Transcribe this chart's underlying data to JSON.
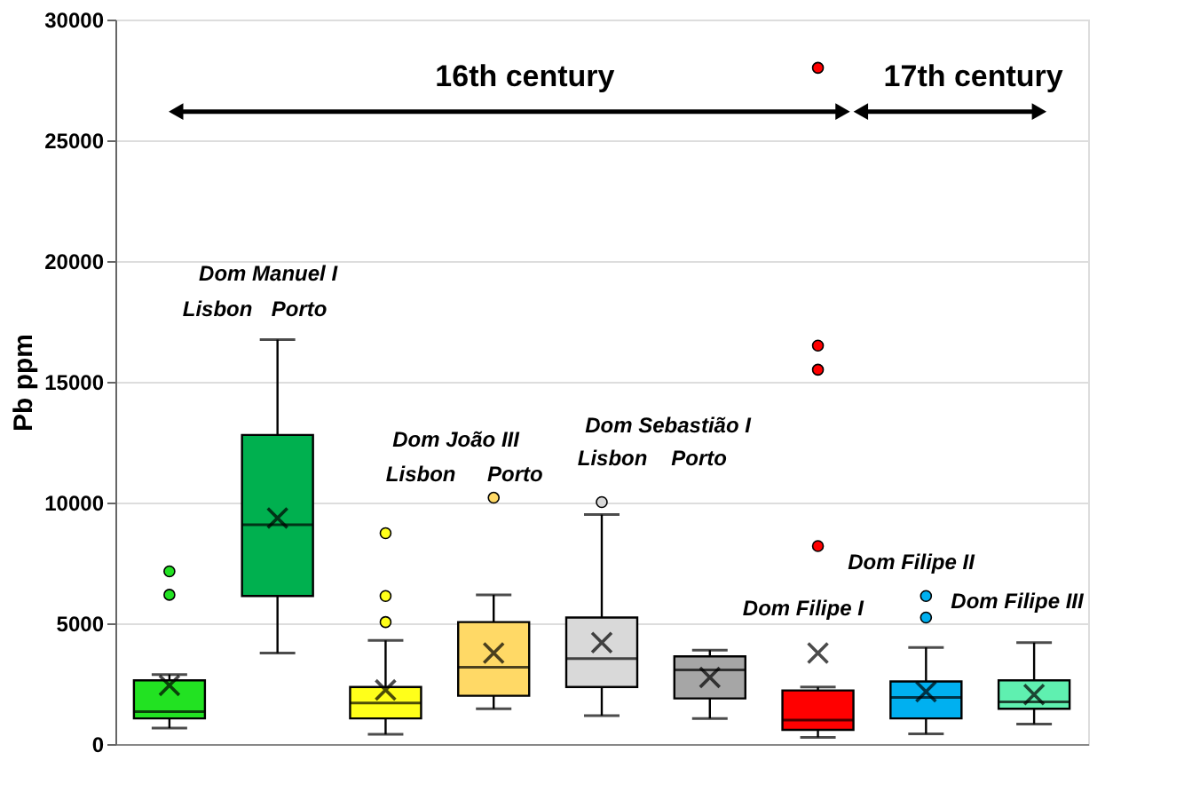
{
  "chart_data": {
    "type": "box",
    "ylabel": "Pb ppm",
    "categories": [
      null,
      null,
      null,
      null,
      null,
      null,
      null,
      null,
      null
    ],
    "colors": [
      "#22e222",
      "#00b04f",
      "#ffff1a",
      "#ffd966",
      "#d9d9d9",
      "#a6a6a6",
      "#ff0000",
      "#00b0f0",
      "#5ff0b0"
    ],
    "boxes": [
      {
        "low": 660,
        "q1": 1060,
        "median": 1340,
        "q3": 2640,
        "high": 2880,
        "mean": 2430,
        "outliers": [
          7150,
          6180
        ]
      },
      {
        "low": 3770,
        "q1": 6130,
        "median": 9080,
        "q3": 12800,
        "high": 16750,
        "mean": 9360
      },
      {
        "low": 400,
        "q1": 1060,
        "median": 1700,
        "q3": 2360,
        "high": 4290,
        "mean": 2240,
        "outliers": [
          8730,
          6130,
          5050
        ]
      },
      {
        "low": 1460,
        "q1": 2000,
        "median": 3180,
        "q3": 5050,
        "high": 6180,
        "mean": 3770,
        "outliers": [
          10200
        ]
      },
      {
        "low": 1180,
        "q1": 2360,
        "median": 3540,
        "q3": 5240,
        "high": 9500,
        "mean": 4200,
        "outliers": [
          10020
        ]
      },
      {
        "low": 1060,
        "q1": 1890,
        "median": 3070,
        "q3": 3630,
        "high": 3890,
        "mean": 2760
      },
      {
        "low": 280,
        "q1": 590,
        "median": 990,
        "q3": 2220,
        "high": 2360,
        "mean": 3770,
        "outliers": [
          28000,
          16500,
          15500,
          8200
        ]
      },
      {
        "low": 420,
        "q1": 1060,
        "median": 1930,
        "q3": 2590,
        "high": 4000,
        "mean": 2170,
        "outliers": [
          6130,
          5240
        ]
      },
      {
        "low": 830,
        "q1": 1460,
        "median": 1750,
        "q3": 2640,
        "high": 4200,
        "mean": 2050
      }
    ],
    "ylim": [
      0,
      30000
    ],
    "yticks": [
      0,
      5000,
      10000,
      15000,
      20000,
      25000,
      30000
    ],
    "grid": "y",
    "tick_labels": "y",
    "annotations": [
      "16th century",
      "17th century",
      "Dom Manuel I",
      "Lisbon",
      "Porto",
      "Dom João III",
      "Lisbon",
      "Porto",
      "Dom Sebastião I",
      "Lisbon",
      "Porto",
      "Dom Filipe I",
      "Dom Filipe II",
      "Dom Filipe III"
    ]
  }
}
